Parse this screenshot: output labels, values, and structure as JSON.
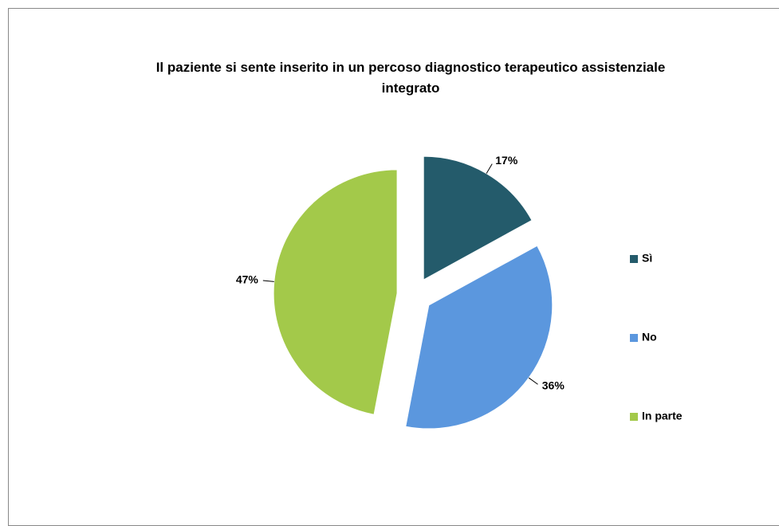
{
  "chart_data": {
    "type": "pie",
    "title": "Il paziente si sente inserito in un percoso diagnostico terapeutico assistenziale integrato",
    "categories": [
      "Sì",
      "No",
      "In parte"
    ],
    "values": [
      17,
      36,
      47
    ],
    "value_labels": [
      "17%",
      "36%",
      "47%"
    ],
    "colors": [
      "#245b6b",
      "#5b97de",
      "#a3c94a"
    ],
    "legend": "right"
  }
}
